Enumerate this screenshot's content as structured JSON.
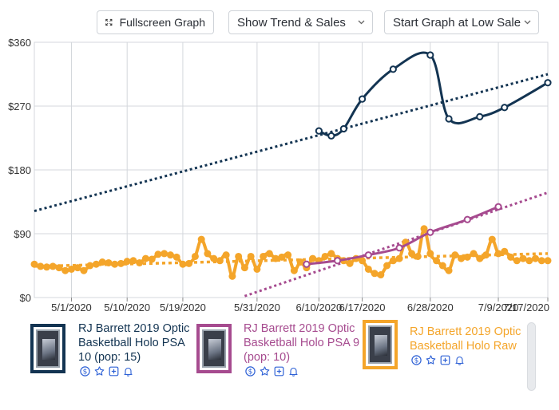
{
  "toolbar": {
    "fullscreen_label": "Fullscreen Graph",
    "trend_label": "Show Trend & Sales",
    "start_label": "Start Graph at Low Sale"
  },
  "chart_data": {
    "type": "line",
    "y_ticks": [
      "$360",
      "$270",
      "$180",
      "$90",
      "$0"
    ],
    "y_tick_values": [
      360,
      270,
      180,
      90,
      0
    ],
    "x_ticks": [
      "5/1/2020",
      "5/10/2020",
      "5/19/2020",
      "5/31/2020",
      "6/10/2020",
      "6/17/2020",
      "6/28/2020",
      "7/9/2020",
      "7/17/2020"
    ],
    "x_tick_values": [
      6,
      15,
      24,
      36,
      46,
      53,
      64,
      75,
      83
    ],
    "xlim": [
      0,
      83
    ],
    "ylim": [
      0,
      360
    ],
    "grid": true,
    "series": [
      {
        "name": "RJ Barrett 2019 Optic Basketball Holo PSA 10 (pop: 15)",
        "color": "#133452",
        "x": [
          46,
          48,
          50,
          53,
          58,
          64,
          67,
          72,
          76,
          83
        ],
        "y": [
          235,
          228,
          238,
          280,
          322,
          342,
          252,
          255,
          268,
          303
        ],
        "trend": [
          [
            0,
            122
          ],
          [
            83,
            315
          ]
        ]
      },
      {
        "name": "RJ Barrett 2019 Optic Basketball Holo PSA 9 (pop: 10)",
        "color": "#a64b8f",
        "x": [
          44,
          49,
          54,
          59,
          64,
          70,
          75
        ],
        "y": [
          47,
          52,
          60,
          70,
          92,
          110,
          128
        ],
        "trend": [
          [
            34,
            2
          ],
          [
            83,
            148
          ]
        ]
      },
      {
        "name": "RJ Barrett 2019 Optic Basketball Holo Raw",
        "color": "#f4a52a",
        "x": [
          0,
          1,
          2,
          3,
          4,
          5,
          6,
          7,
          8,
          9,
          10,
          11,
          12,
          13,
          14,
          15,
          16,
          17,
          18,
          19,
          20,
          21,
          22,
          23,
          24,
          25,
          26,
          27,
          28,
          29,
          30,
          31,
          32,
          33,
          34,
          35,
          36,
          37,
          38,
          39,
          40,
          41,
          42,
          43,
          44,
          45,
          46,
          47,
          48,
          49,
          50,
          51,
          52,
          53,
          54,
          55,
          56,
          57,
          58,
          59,
          60,
          61,
          62,
          63,
          64,
          65,
          66,
          67,
          68,
          69,
          70,
          71,
          72,
          73,
          74,
          75,
          76,
          77,
          78,
          79,
          80,
          81,
          82,
          83
        ],
        "y": [
          47,
          44,
          43,
          44,
          42,
          38,
          40,
          42,
          38,
          45,
          47,
          50,
          49,
          47,
          48,
          51,
          52,
          49,
          55,
          54,
          61,
          62,
          60,
          57,
          47,
          48,
          58,
          82,
          62,
          55,
          52,
          60,
          30,
          58,
          42,
          58,
          40,
          58,
          62,
          55,
          57,
          60,
          38,
          50,
          42,
          55,
          52,
          58,
          62,
          55,
          52,
          48,
          55,
          52,
          40,
          34,
          32,
          45,
          52,
          55,
          78,
          62,
          58,
          97,
          62,
          52,
          45,
          38,
          60,
          55,
          57,
          62,
          55,
          60,
          82,
          62,
          65,
          57,
          52,
          55,
          52,
          55,
          52,
          52
        ],
        "trend": [
          [
            0,
            44
          ],
          [
            83,
            62
          ]
        ]
      }
    ]
  },
  "legend": {
    "items": [
      {
        "title": "RJ Barrett 2019 Optic Basketball Holo PSA 10 (pop: 15)",
        "color": "#133452",
        "text_color": "#133452"
      },
      {
        "title": "RJ Barrett 2019 Optic Basketball Holo PSA 9 (pop: 10)",
        "color": "#a64b8f",
        "text_color": "#a64b8f"
      },
      {
        "title": "RJ Barrett 2019 Optic Basketball Holo Raw",
        "color": "#f4a52a",
        "text_color": "#f4a52a"
      }
    ],
    "icons": [
      "dollar-icon",
      "star-icon",
      "plus-box-icon",
      "bell-icon"
    ],
    "icon_color": "#2f62d6"
  }
}
